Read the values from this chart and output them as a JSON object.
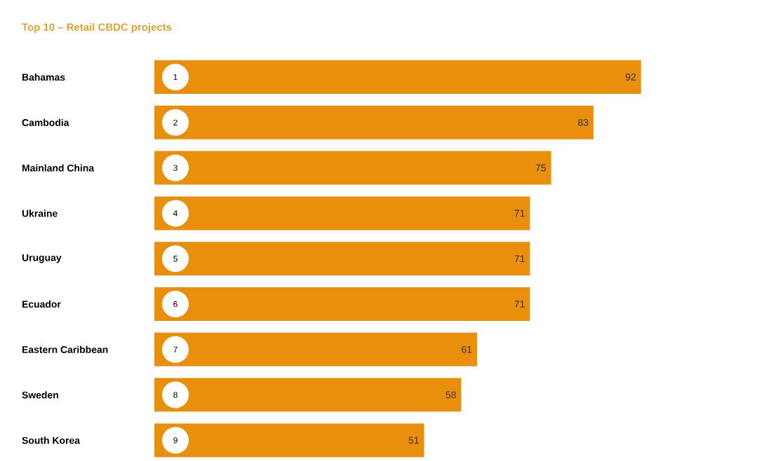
{
  "chart_data": {
    "type": "bar",
    "orientation": "horizontal",
    "title": "Top 10 – Retail CBDC projects",
    "categories": [
      "Bahamas",
      "Cambodia",
      "Mainland China",
      "Ukraine",
      "Uruguay",
      "Ecuador",
      "Eastern Caribbean",
      "Sweden",
      "South Korea"
    ],
    "values": [
      92,
      83,
      75,
      71,
      71,
      71,
      61,
      58,
      51
    ],
    "color": "#ea8f0c",
    "data_labels": true,
    "annotations": [
      {
        "text": "1",
        "y": "Bahamas"
      },
      {
        "text": "2",
        "y": "Cambodia"
      },
      {
        "text": "3",
        "y": "Mainland China"
      },
      {
        "text": "4",
        "y": "Ukraine"
      },
      {
        "text": "5",
        "y": "Uruguay"
      },
      {
        "text": "6",
        "y": "Ecuador"
      },
      {
        "text": "7",
        "y": "Eastern Caribbean"
      },
      {
        "text": "8",
        "y": "Sweden"
      },
      {
        "text": "9",
        "y": "South Korea"
      }
    ]
  }
}
